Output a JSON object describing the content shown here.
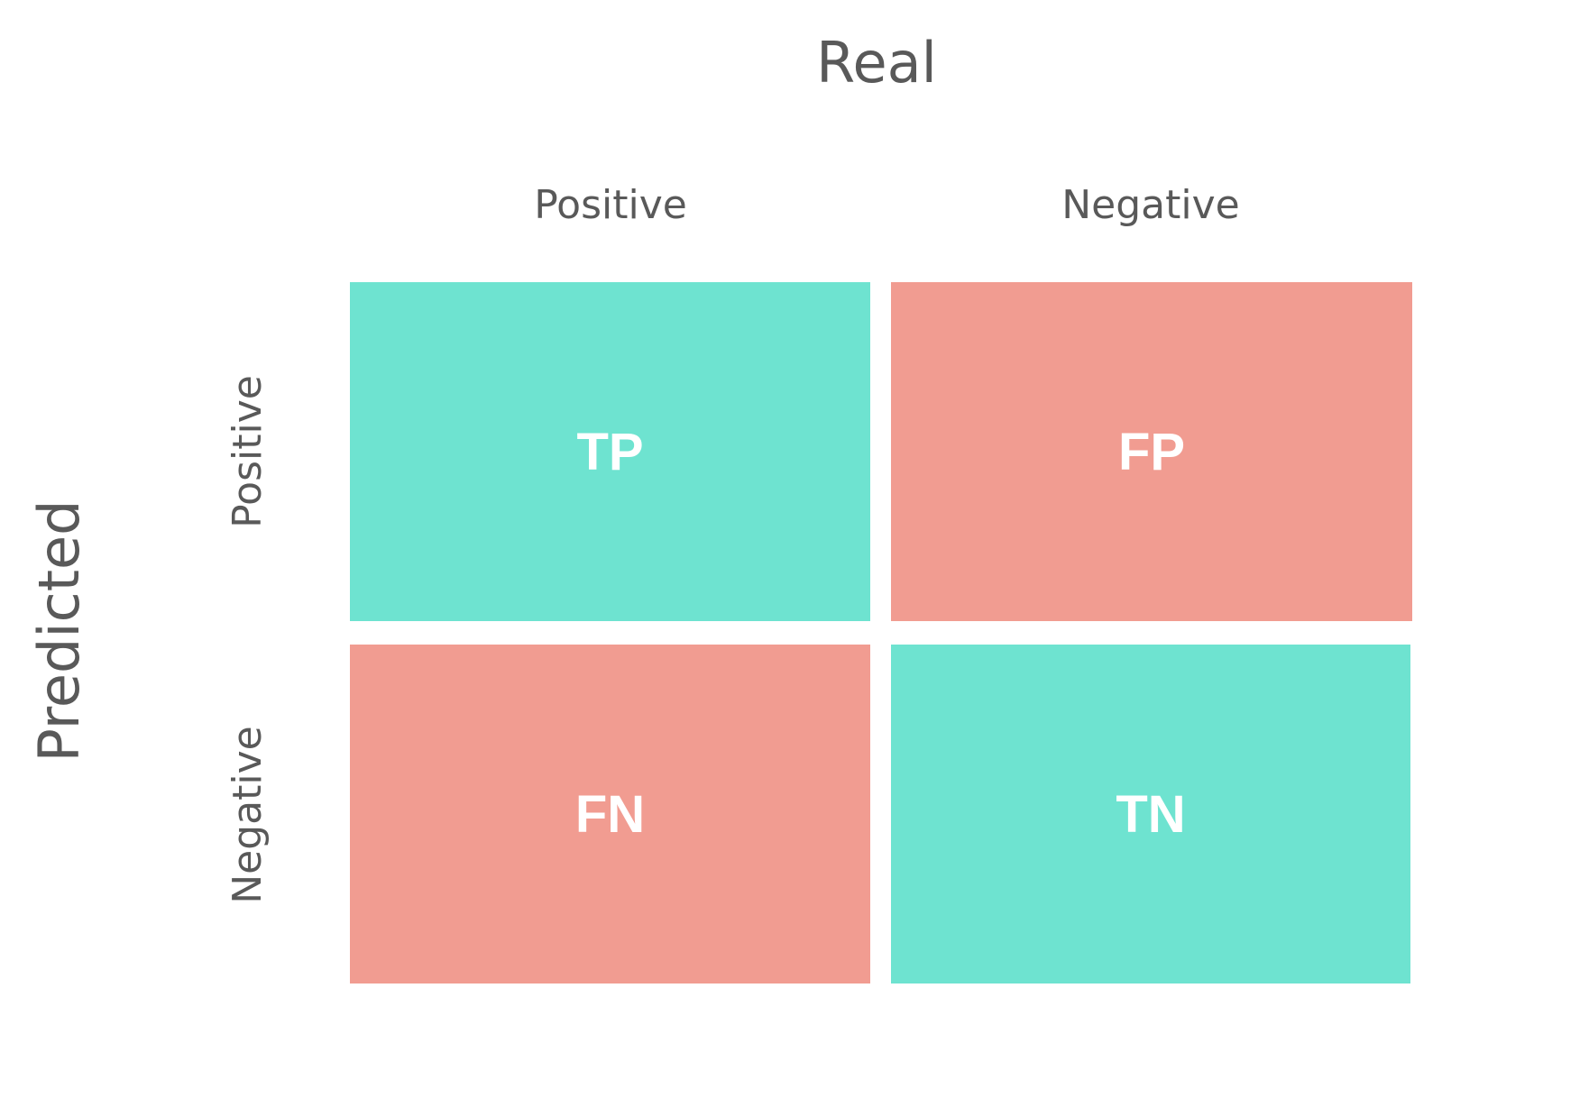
{
  "diagram": {
    "top_title": "Real",
    "side_title": "Predicted",
    "columns": [
      "Positive",
      "Negative"
    ],
    "rows": [
      "Positive",
      "Negative"
    ],
    "cells": [
      {
        "text": "TP",
        "color": "#6ee3d0"
      },
      {
        "text": "FP",
        "color": "#f19c91"
      },
      {
        "text": "FN",
        "color": "#f19c91"
      },
      {
        "text": "TN",
        "color": "#6ee3d0"
      }
    ]
  }
}
